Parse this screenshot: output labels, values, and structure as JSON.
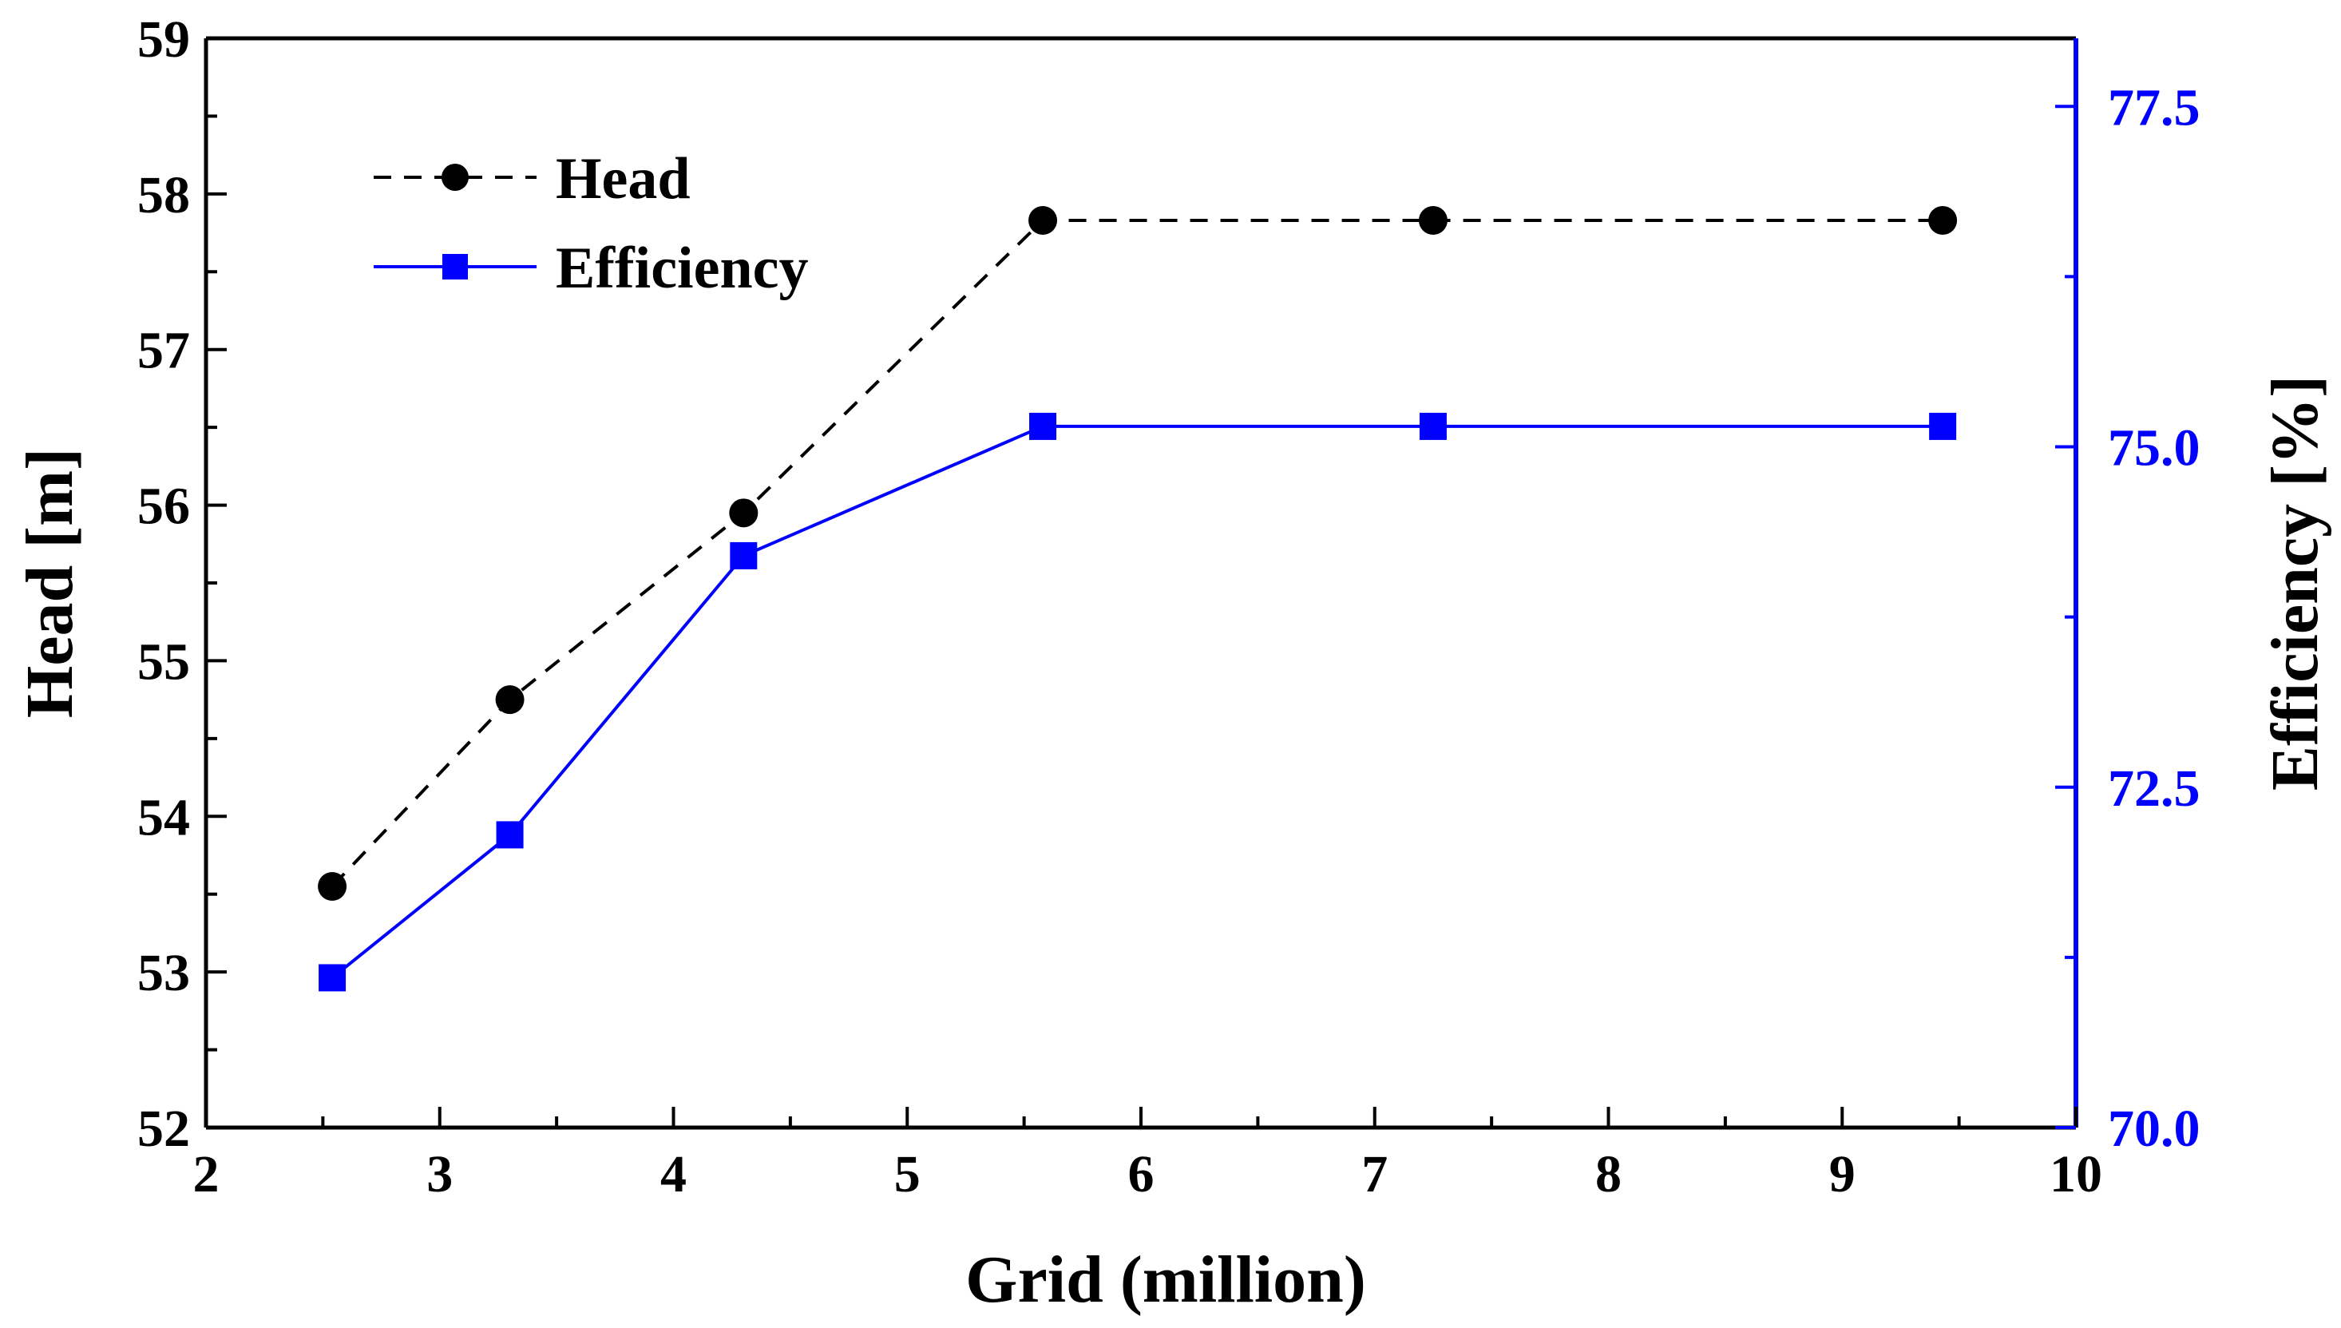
{
  "chart_data": {
    "type": "line",
    "title": "",
    "xlabel": "Grid (million)",
    "ylabel": "Head [m]",
    "ylabel_right": "Efficiency [%]",
    "xlim": [
      2,
      10
    ],
    "ylim": [
      52,
      59
    ],
    "ylim_right": [
      70.0,
      78.0
    ],
    "x_ticks": [
      2,
      3,
      4,
      5,
      6,
      7,
      8,
      9,
      10
    ],
    "x_tick_labels": [
      "2",
      "3",
      "4",
      "5",
      "6",
      "7",
      "8",
      "9",
      "10"
    ],
    "y_ticks": [
      52,
      53,
      54,
      55,
      56,
      57,
      58,
      59
    ],
    "y_tick_labels": [
      "52",
      "53",
      "54",
      "55",
      "56",
      "57",
      "58",
      "59"
    ],
    "y_right_ticks": [
      70.0,
      72.5,
      75.0,
      77.5
    ],
    "y_right_tick_labels": [
      "70.0",
      "72.5",
      "75.0",
      "77.5"
    ],
    "legend_position": "top-left",
    "grid": false,
    "series": [
      {
        "name": "Head",
        "axis": "left",
        "color": "#000000",
        "line_style": "dashed",
        "marker": "circle",
        "x": [
          2.54,
          3.3,
          4.3,
          5.58,
          7.25,
          9.43
        ],
        "values": [
          53.55,
          54.75,
          55.95,
          57.83,
          57.83,
          57.83
        ]
      },
      {
        "name": "Efficiency",
        "axis": "right",
        "color": "#0000ff",
        "line_style": "solid",
        "marker": "square",
        "x": [
          2.54,
          3.3,
          4.3,
          5.58,
          7.25,
          9.43
        ],
        "values": [
          71.1,
          72.15,
          74.2,
          75.15,
          75.15,
          75.15
        ]
      }
    ]
  }
}
